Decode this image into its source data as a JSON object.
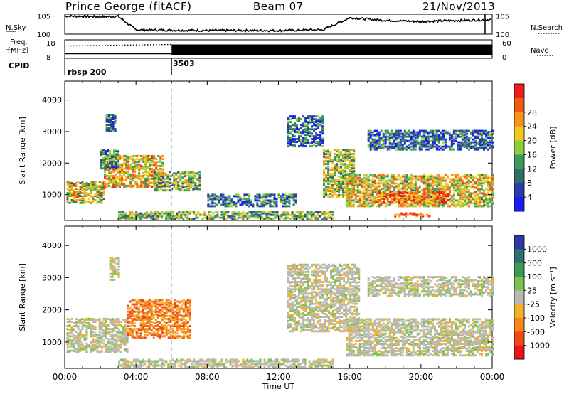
{
  "header": {
    "station": "Prince George (fitACF)",
    "beam": "Beam 07",
    "date": "21/Nov/2013"
  },
  "side_labels": {
    "nsky": "N.Sky",
    "nsearch": "N.Search",
    "freq_1": "Freq.",
    "freq_2": "[MHz]",
    "nave": "Nave",
    "cpid": "CPID"
  },
  "cpid_segments": [
    {
      "label": "rbsp 200",
      "start_hour": 0
    },
    {
      "label": "3503",
      "start_hour": 6
    }
  ],
  "colors": {
    "power_scale": [
      "#1b1bf0",
      "#2a3ca8",
      "#2f6e68",
      "#3d9a57",
      "#8ccf3a",
      "#f2c81e",
      "#f7931a",
      "#f05a12",
      "#ee1c1c"
    ],
    "velocity_scale": [
      "#2c3a9e",
      "#2e6f72",
      "#3d9a55",
      "#7cc24c",
      "#b8b8b4",
      "#f2b12a",
      "#f5851c",
      "#f04a14",
      "#e8141a"
    ]
  },
  "chart_data": [
    {
      "type": "line",
      "name": "noise-panel",
      "series": [
        {
          "name": "N.Sky",
          "y_ticks": [
            "10^5",
            "10^0"
          ],
          "x": [
            0,
            2,
            3,
            4,
            8,
            12,
            14.5,
            16,
            18,
            20,
            24
          ],
          "values": [
            5.0,
            4.8,
            4.9,
            1.2,
            1.0,
            1.0,
            1.2,
            4.5,
            3.8,
            3.5,
            4.0
          ]
        },
        {
          "name": "N.Search",
          "y_ticks": [
            "10^5",
            "10^0"
          ],
          "x": [
            0,
            24
          ],
          "values": [
            1,
            1
          ]
        }
      ]
    },
    {
      "type": "line",
      "name": "freq-nave-panel",
      "series": [
        {
          "name": "Freq. [MHz]",
          "y_ticks": [
            "18",
            "8"
          ],
          "x": [
            0,
            6,
            24
          ],
          "values": [
            10.5,
            10.5,
            10.5
          ]
        },
        {
          "name": "Nave",
          "y_ticks": [
            "60",
            "0"
          ],
          "x": [
            0,
            6,
            24
          ],
          "values": [
            40,
            45,
            45
          ]
        }
      ]
    },
    {
      "type": "heatmap",
      "name": "power-panel",
      "ylabel": "Slant Range [km]",
      "y_ticks": [
        "1000",
        "2000",
        "3000",
        "4000"
      ],
      "ylim": [
        180,
        4600
      ],
      "xlim": [
        0,
        24
      ],
      "colorbar_label": "Power [dB]",
      "colorbar_ticks": [
        "4",
        "8",
        "12",
        "16",
        "20",
        "24",
        "28"
      ],
      "echo_regions": [
        {
          "t0": 0.1,
          "t1": 2.2,
          "r0": 700,
          "r1": 1400,
          "level": 0.55
        },
        {
          "t0": 2.2,
          "t1": 5.5,
          "r0": 1200,
          "r1": 2200,
          "level": 0.65
        },
        {
          "t0": 5.0,
          "t1": 7.6,
          "r0": 1100,
          "r1": 1700,
          "level": 0.45
        },
        {
          "t0": 2.0,
          "t1": 3.0,
          "r0": 1800,
          "r1": 2400,
          "level": 0.3
        },
        {
          "t0": 2.3,
          "t1": 2.9,
          "r0": 3000,
          "r1": 3500,
          "level": 0.25
        },
        {
          "t0": 3.0,
          "t1": 15.0,
          "r0": 190,
          "r1": 420,
          "level": 0.45
        },
        {
          "t0": 12.5,
          "t1": 14.5,
          "r0": 2500,
          "r1": 3450,
          "level": 0.2
        },
        {
          "t0": 14.5,
          "t1": 16.2,
          "r0": 900,
          "r1": 2400,
          "level": 0.5
        },
        {
          "t0": 15.8,
          "t1": 24.0,
          "r0": 600,
          "r1": 1600,
          "level": 0.6
        },
        {
          "t0": 17.5,
          "t1": 21.5,
          "r0": 700,
          "r1": 1100,
          "level": 0.85
        },
        {
          "t0": 18.5,
          "t1": 20.5,
          "r0": 280,
          "r1": 400,
          "level": 0.9
        },
        {
          "t0": 17.0,
          "t1": 24.0,
          "r0": 2400,
          "r1": 3000,
          "level": 0.2
        },
        {
          "t0": 8.0,
          "t1": 13.0,
          "r0": 600,
          "r1": 1000,
          "level": 0.25
        }
      ]
    },
    {
      "type": "heatmap",
      "name": "velocity-panel",
      "ylabel": "Slant Range [km]",
      "y_ticks": [
        "1000",
        "2000",
        "3000",
        "4000"
      ],
      "ylim": [
        180,
        4600
      ],
      "xlim": [
        0,
        24
      ],
      "xlabel": "Time UT",
      "x_ticks": [
        "00:00",
        "04:00",
        "08:00",
        "12:00",
        "16:00",
        "20:00",
        "00:00"
      ],
      "colorbar_label": "Velocity [m s-1]",
      "colorbar_ticks": [
        "1000",
        "500",
        "100",
        "25",
        "-25",
        "-100",
        "-500",
        "-1000"
      ],
      "echo_regions": [
        {
          "t0": 0.1,
          "t1": 3.5,
          "r0": 650,
          "r1": 1700,
          "level": 0.5
        },
        {
          "t0": 3.5,
          "t1": 7.0,
          "r0": 1100,
          "r1": 2300,
          "level": 0.8
        },
        {
          "t0": 2.5,
          "t1": 3.0,
          "r0": 2900,
          "r1": 3600,
          "level": 0.3
        },
        {
          "t0": 3.0,
          "t1": 15.0,
          "r0": 190,
          "r1": 420,
          "level": 0.6
        },
        {
          "t0": 12.5,
          "t1": 16.5,
          "r0": 1300,
          "r1": 3400,
          "level": 0.5
        },
        {
          "t0": 15.8,
          "t1": 24.0,
          "r0": 550,
          "r1": 1700,
          "level": 0.5
        },
        {
          "t0": 17.0,
          "t1": 24.0,
          "r0": 2400,
          "r1": 3000,
          "level": 0.35
        }
      ]
    }
  ]
}
